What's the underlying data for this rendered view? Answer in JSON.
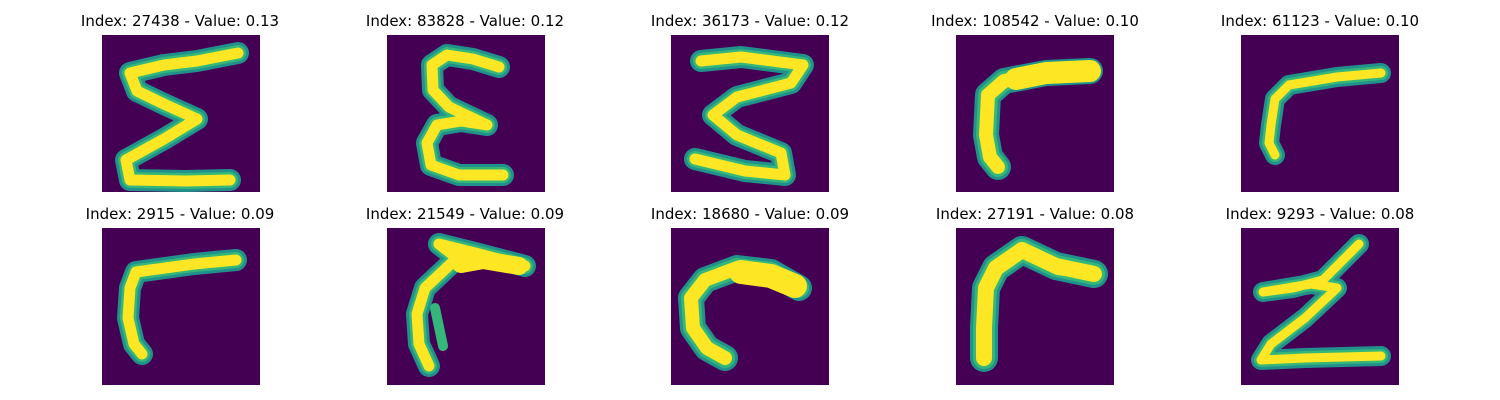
{
  "colors": {
    "background": "#440154",
    "stroke_core": "#fde725",
    "stroke_edge": "#35b779",
    "stroke_halo": "#21918c"
  },
  "panels": [
    {
      "title": "Index: 27438 - Value: 0.13",
      "glyph": "sigma-like-stroke"
    },
    {
      "title": "Index: 83828 - Value: 0.12",
      "glyph": "epsilon-like-stroke"
    },
    {
      "title": "Index: 36173 - Value: 0.12",
      "glyph": "three-like-stroke"
    },
    {
      "title": "Index: 108542 - Value: 0.10",
      "glyph": "gamma-like-stroke"
    },
    {
      "title": "Index: 61123 - Value: 0.10",
      "glyph": "gamma-like-stroke"
    },
    {
      "title": "Index: 2915 - Value: 0.09",
      "glyph": "gamma-like-stroke"
    },
    {
      "title": "Index: 21549 - Value: 0.09",
      "glyph": "hook-like-stroke"
    },
    {
      "title": "Index: 18680 - Value: 0.09",
      "glyph": "c-like-stroke"
    },
    {
      "title": "Index: 27191 - Value: 0.08",
      "glyph": "gamma-like-stroke"
    },
    {
      "title": "Index: 9293 - Value: 0.08",
      "glyph": "z-like-stroke"
    }
  ]
}
